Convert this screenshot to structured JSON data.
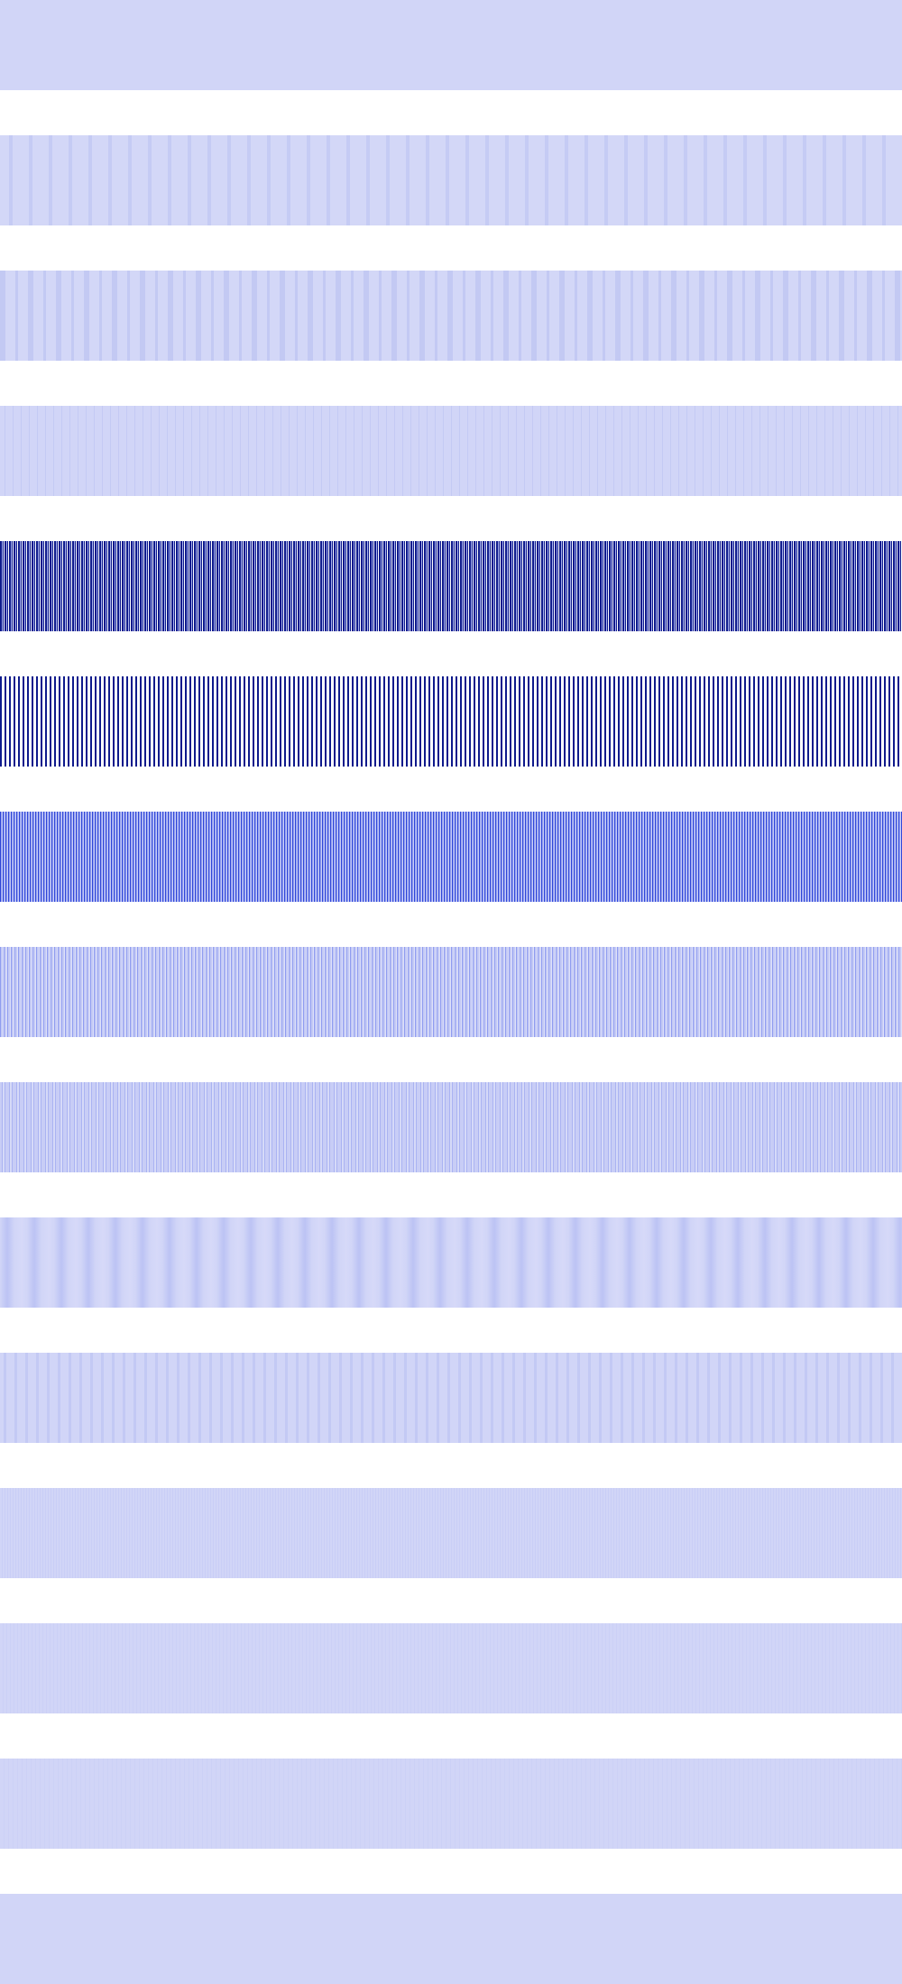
{
  "colors": {
    "background": "#ffffff",
    "pale_lavender": "#d1d5f7",
    "navy": "#0e1a8c",
    "royal_blue": "#2f46d8",
    "periwinkle": "#8f9cf0",
    "light_periwinkle": "#b8bff5"
  },
  "bands": [
    {
      "name": "band-solid-pale-top",
      "base": "#d1d5f7",
      "line": null,
      "pattern": "solid"
    },
    {
      "name": "band-faint-wide-stripes-a",
      "base": "#d3d7f7",
      "line": "#c5cbf4",
      "pattern": "wide-soft"
    },
    {
      "name": "band-faint-wide-stripes-b",
      "base": "#d3d7f7",
      "line": "#c3c9f3",
      "pattern": "wide-soft-alt"
    },
    {
      "name": "band-faint-thin-lines",
      "base": "#d1d5f7",
      "line": "#c4caf4",
      "pattern": "thin-faint"
    },
    {
      "name": "band-dense-navy-lines",
      "base": "#a9b2ee",
      "line": "#0e1a8c",
      "pattern": "dense-strong"
    },
    {
      "name": "band-dense-navy-lines-white",
      "base": "#ffffff",
      "line": "#0e1a8c",
      "pattern": "dense-strong-white"
    },
    {
      "name": "band-dense-blue-lines",
      "base": "#97a3f0",
      "line": "#2f46d8",
      "pattern": "dense-medium"
    },
    {
      "name": "band-dense-periwinkle-lines",
      "base": "#c4caf5",
      "line": "#8f9cf0",
      "pattern": "dense-light"
    },
    {
      "name": "band-mixed-periwinkle-lines",
      "base": "#c8cdf6",
      "line": "#aab3f2",
      "pattern": "mixed-light"
    },
    {
      "name": "band-soft-wide-stripes",
      "base": "#d1d5f7",
      "line": "#bcc3f4",
      "pattern": "wide-soft-blur"
    },
    {
      "name": "band-soft-medium-stripes",
      "base": "#d1d5f7",
      "line": "#c3c9f4",
      "pattern": "medium-soft"
    },
    {
      "name": "band-faint-fine-lines-a",
      "base": "#d1d5f7",
      "line": "#c9cef6",
      "pattern": "fine-faint"
    },
    {
      "name": "band-faint-fine-lines-b",
      "base": "#d1d5f7",
      "line": "#cbd0f6",
      "pattern": "fine-fainter"
    },
    {
      "name": "band-faint-fine-lines-c",
      "base": "#d1d5f7",
      "line": "#ccd1f6",
      "pattern": "fine-faintest"
    },
    {
      "name": "band-solid-pale-bottom",
      "base": "#d1d5f7",
      "line": null,
      "pattern": "solid"
    }
  ]
}
